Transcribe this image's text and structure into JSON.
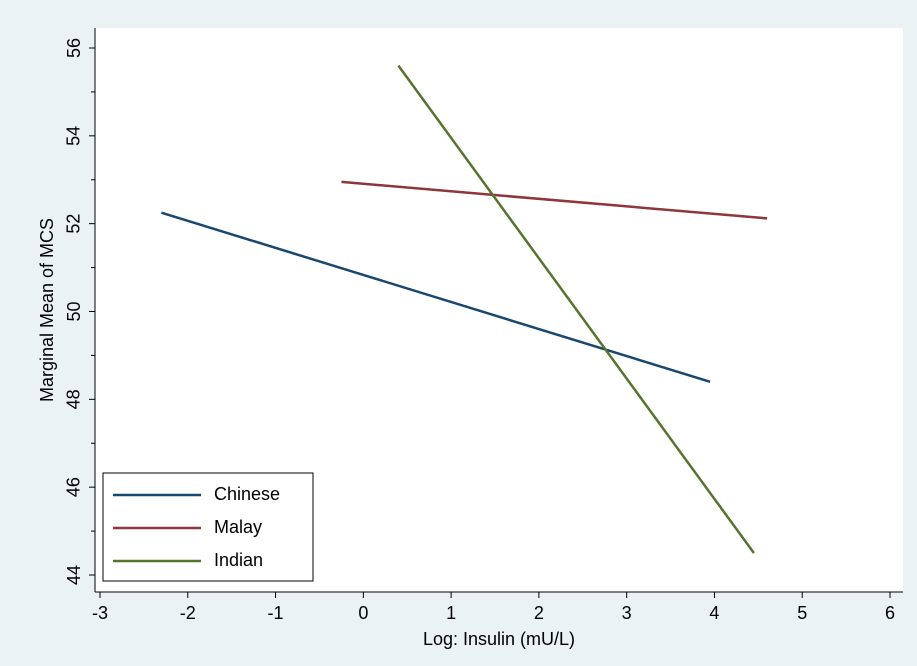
{
  "chart_data": {
    "type": "line",
    "title": "",
    "xlabel": "Log: Insulin (mU/L)",
    "ylabel": "Marginal Mean of MCS",
    "xlim": [
      -3,
      6
    ],
    "ylim": [
      44,
      56
    ],
    "x_ticks": [
      -3,
      -2,
      -1,
      0,
      1,
      2,
      3,
      4,
      5,
      6
    ],
    "y_ticks": [
      44,
      46,
      48,
      50,
      52,
      54,
      56
    ],
    "grid": false,
    "legend_position": "bottom-left",
    "series": [
      {
        "name": "Chinese",
        "color": "#1a476f",
        "x": [
          -2.3,
          3.95
        ],
        "y": [
          52.25,
          48.4
        ]
      },
      {
        "name": "Malay",
        "color": "#90353b",
        "x": [
          -0.25,
          4.6
        ],
        "y": [
          52.95,
          52.12
        ]
      },
      {
        "name": "Indian",
        "color": "#55752f",
        "x": [
          0.4,
          4.45
        ],
        "y": [
          55.6,
          44.5
        ]
      }
    ]
  }
}
